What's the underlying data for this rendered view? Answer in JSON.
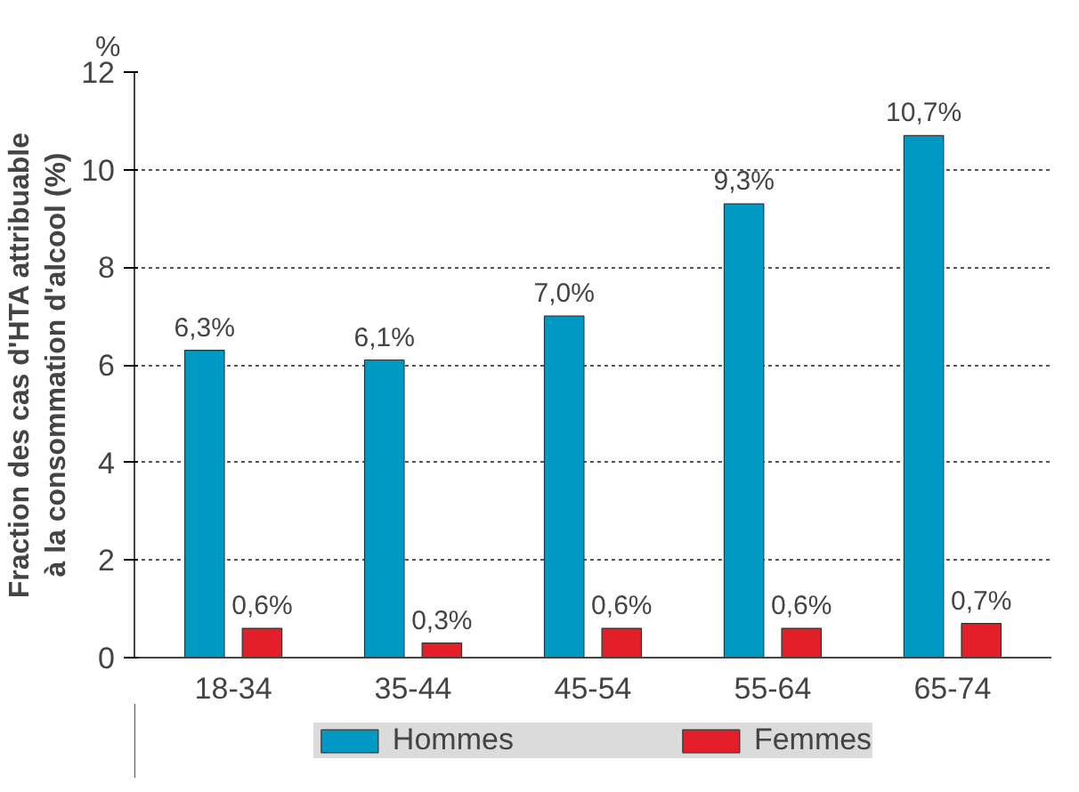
{
  "chart_data": {
    "type": "bar",
    "ylabel": "Fraction des cas d'HTA attribuable à la consommation d'alcool (%)",
    "annotations": [
      "%"
    ],
    "categories": [
      "18-34",
      "35-44",
      "45-54",
      "55-64",
      "65-74"
    ],
    "series": [
      {
        "name": "Hommes",
        "color": "#0099c4",
        "values": [
          6.3,
          6.1,
          7.0,
          9.3,
          10.7
        ],
        "value_labels": [
          "6,3%",
          "6,1%",
          "7,0%",
          "9,3%",
          "10,7%"
        ]
      },
      {
        "name": "Femmes",
        "color": "#e3202a",
        "values": [
          0.6,
          0.3,
          0.6,
          0.6,
          0.7
        ],
        "value_labels": [
          "0,6%",
          "0,3%",
          "0,6%",
          "0,6%",
          "0,7%"
        ]
      }
    ],
    "ylim": [
      0,
      12
    ],
    "yticks": [
      0,
      2,
      4,
      6,
      8,
      10,
      12
    ],
    "grid": "y",
    "legend": "bottom"
  }
}
